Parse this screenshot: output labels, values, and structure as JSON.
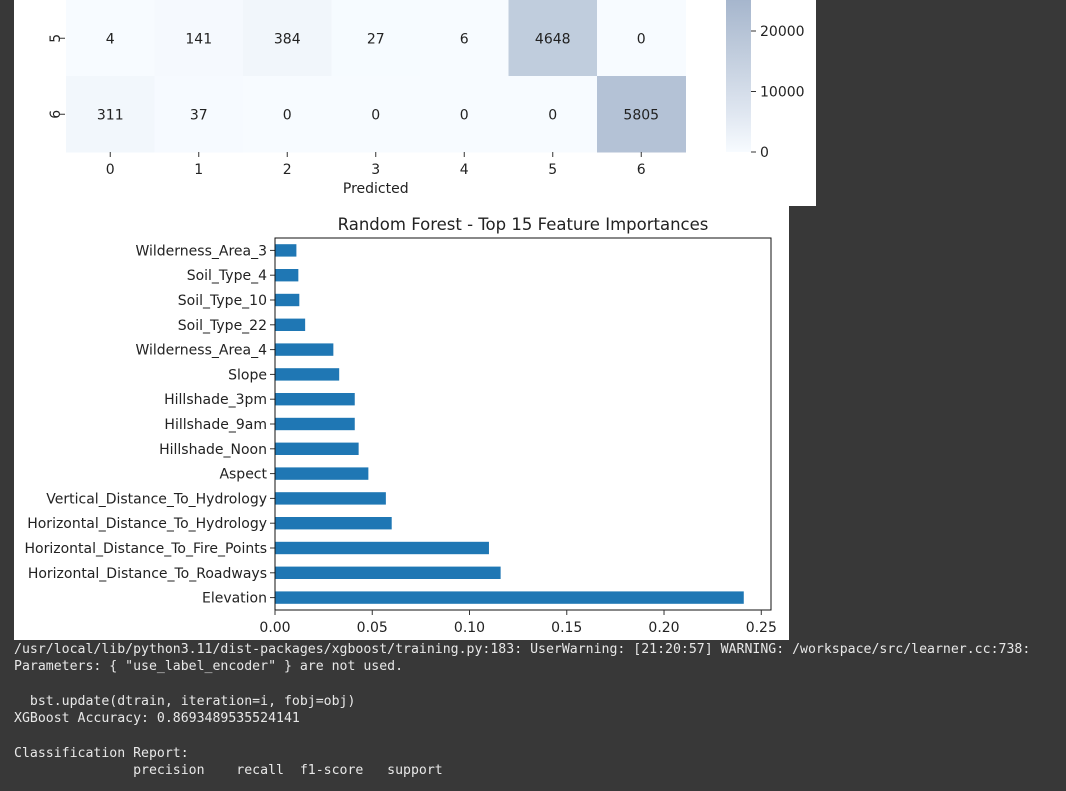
{
  "chart_data": [
    {
      "type": "heatmap",
      "title": "",
      "xlabel": "Predicted",
      "ylabel": "",
      "x_tick_labels": [
        "0",
        "1",
        "2",
        "3",
        "4",
        "5",
        "6"
      ],
      "visible_rows": [
        {
          "label": "5",
          "values": [
            4,
            141,
            384,
            27,
            6,
            4648,
            0
          ]
        },
        {
          "label": "6",
          "values": [
            311,
            37,
            0,
            0,
            0,
            0,
            5805
          ]
        }
      ],
      "colormap": {
        "low": "#f7fbff",
        "high": "#08306b"
      },
      "colorbar": {
        "vmax": 24000,
        "ticks": [
          20000,
          10000,
          0
        ],
        "tick_labels": [
          "20000",
          "10000",
          "0"
        ]
      }
    },
    {
      "type": "bar",
      "orientation": "horizontal",
      "title": "Random Forest - Top 15 Feature Importances",
      "xlabel": "",
      "ylabel": "",
      "xlim": [
        0,
        0.255
      ],
      "x_ticks": [
        0,
        0.05,
        0.1,
        0.15,
        0.2,
        0.25
      ],
      "x_tick_labels": [
        "0.00",
        "0.05",
        "0.10",
        "0.15",
        "0.20",
        "0.25"
      ],
      "bar_color": "#1f77b4",
      "categories": [
        "Wilderness_Area_3",
        "Soil_Type_4",
        "Soil_Type_10",
        "Soil_Type_22",
        "Wilderness_Area_4",
        "Slope",
        "Hillshade_3pm",
        "Hillshade_9am",
        "Hillshade_Noon",
        "Aspect",
        "Vertical_Distance_To_Hydrology",
        "Horizontal_Distance_To_Hydrology",
        "Horizontal_Distance_To_Fire_Points",
        "Horizontal_Distance_To_Roadways",
        "Elevation"
      ],
      "values": [
        0.011,
        0.012,
        0.0125,
        0.0155,
        0.03,
        0.033,
        0.041,
        0.041,
        0.043,
        0.048,
        0.057,
        0.06,
        0.11,
        0.116,
        0.241
      ]
    }
  ],
  "console": {
    "lines": [
      "/usr/local/lib/python3.11/dist-packages/xgboost/training.py:183: UserWarning: [21:20:57] WARNING: /workspace/src/learner.cc:738:",
      "Parameters: { \"use_label_encoder\" } are not used.",
      "",
      "  bst.update(dtrain, iteration=i, fobj=obj)",
      "XGBoost Accuracy: 0.8693489535524141",
      "",
      "Classification Report:",
      "               precision    recall  f1-score   support"
    ]
  }
}
